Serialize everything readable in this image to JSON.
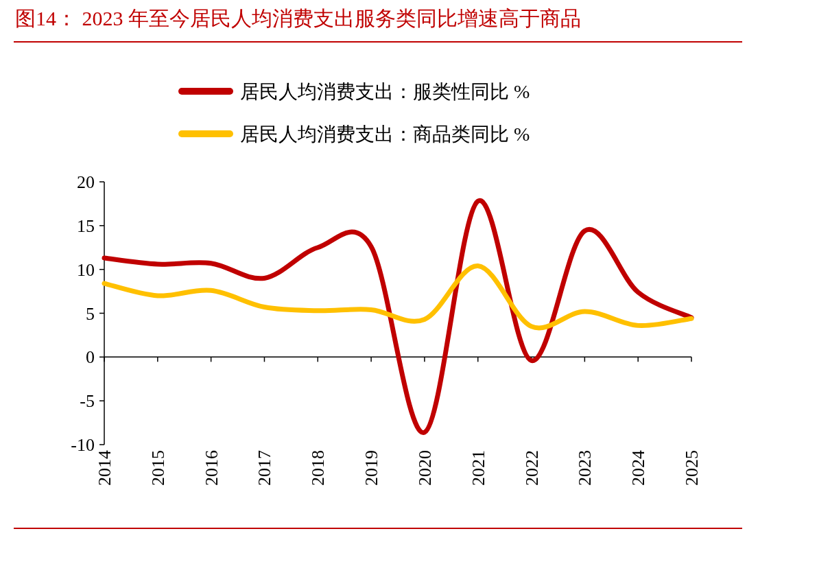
{
  "chart_data": {
    "type": "line",
    "title": "图14： 2023 年至今居民人均消费支出服务类同比增速高于商品",
    "categories": [
      "2014",
      "2015",
      "2016",
      "2017",
      "2018",
      "2019",
      "2020",
      "2021",
      "2022",
      "2023",
      "2024",
      "2025"
    ],
    "series": [
      {
        "name": "居民人均消费支出：服类性同比 %",
        "color": "#c00000",
        "values": [
          11.3,
          10.6,
          10.7,
          9.0,
          12.5,
          12.6,
          -8.6,
          17.8,
          -0.4,
          14.4,
          7.4,
          4.5
        ]
      },
      {
        "name": "居民人均消费支出：商品类同比 %",
        "color": "#ffc000",
        "values": [
          8.4,
          7.0,
          7.6,
          5.7,
          5.3,
          5.4,
          4.3,
          10.4,
          3.5,
          5.2,
          3.6,
          4.4
        ]
      }
    ],
    "ylim": [
      -10,
      20
    ],
    "yticks": [
      -10,
      -5,
      0,
      5,
      10,
      15,
      20
    ],
    "legend": "top",
    "marker": "none",
    "line_style": "solid"
  }
}
